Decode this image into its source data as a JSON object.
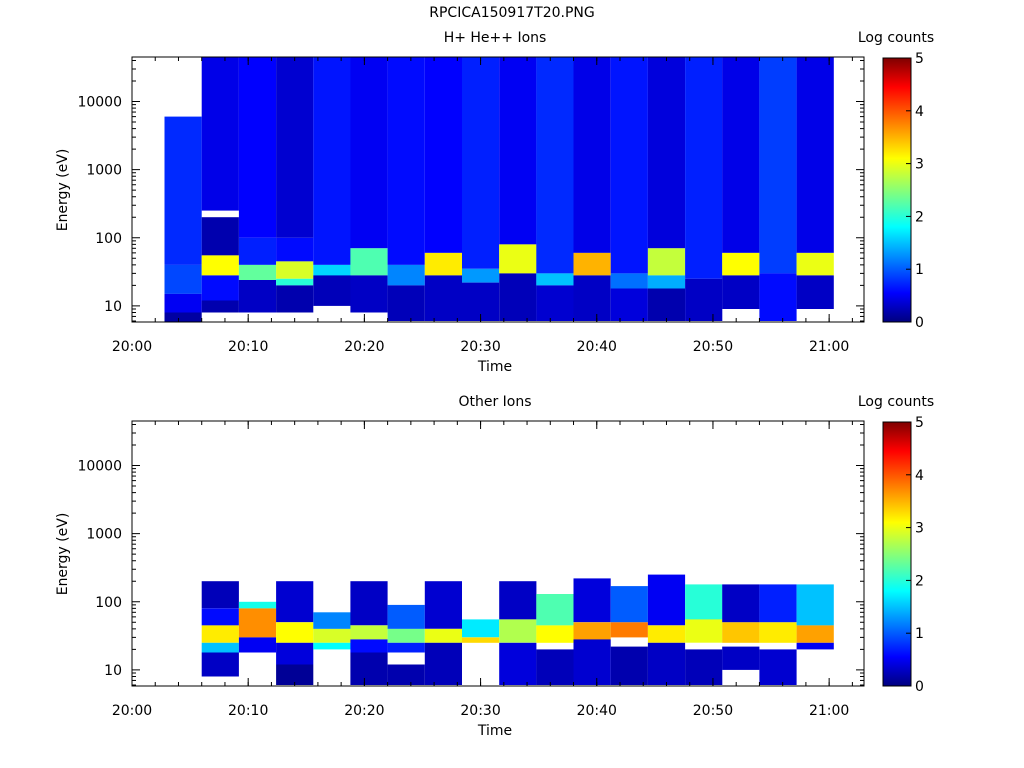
{
  "page": {
    "title": "RPCICA150917T20.PNG"
  },
  "panels": [
    {
      "title": "H+ He++ Ions",
      "ylabel": "Energy (eV)",
      "xlabel": "Time",
      "colorbar_label": "Log counts"
    },
    {
      "title": "Other Ions",
      "ylabel": "Energy (eV)",
      "xlabel": "Time",
      "colorbar_label": "Log counts"
    }
  ],
  "chart_data": [
    {
      "type": "heatmap",
      "title": "H+ He++ Ions",
      "xlabel": "Time",
      "ylabel": "Energy (eV)",
      "yscale": "log",
      "xlim_minutes": [
        0,
        63
      ],
      "ylim": [
        5.8,
        45000
      ],
      "x_ticks": [
        {
          "v": 0,
          "label": "20:00"
        },
        {
          "v": 10,
          "label": "20:10"
        },
        {
          "v": 20,
          "label": "20:20"
        },
        {
          "v": 30,
          "label": "20:30"
        },
        {
          "v": 40,
          "label": "20:40"
        },
        {
          "v": 50,
          "label": "20:50"
        },
        {
          "v": 60,
          "label": "21:00"
        }
      ],
      "y_ticks": [
        {
          "v": 10,
          "label": "10"
        },
        {
          "v": 100,
          "label": "100"
        },
        {
          "v": 1000,
          "label": "1000"
        },
        {
          "v": 10000,
          "label": "10000"
        }
      ],
      "colorbar": {
        "label": "Log counts",
        "range": [
          0,
          5
        ],
        "ticks": [
          "0",
          "1",
          "2",
          "3",
          "4",
          "5"
        ]
      },
      "time_bins_minutes": [
        2.8,
        6.0,
        9.2,
        12.4,
        15.6,
        18.8,
        22.0,
        25.2,
        28.4,
        31.6,
        34.8,
        38.0,
        41.2,
        44.4,
        47.6,
        50.8,
        54.0,
        57.2,
        60.4
      ],
      "cells": [
        {
          "e": [
            40,
            6000
          ],
          "v": 0.75
        },
        {
          "e": [
            15,
            40
          ],
          "v": 0.9
        },
        {
          "e": [
            8,
            15
          ],
          "v": 0.5
        },
        {
          "e": [
            5.8,
            8
          ],
          "v": 0.15
        },
        {
          "e": [
            250,
            45000
          ],
          "v": 0.45
        },
        {
          "e": [
            55,
            200
          ],
          "v": 0.2
        },
        {
          "e": [
            28,
            55
          ],
          "v": 3.1
        },
        {
          "e": [
            12,
            28
          ],
          "v": 0.6
        },
        {
          "e": [
            8,
            12
          ],
          "v": 0.2
        },
        {
          "e": [
            100,
            45000
          ],
          "v": 0.55
        },
        {
          "e": [
            40,
            100
          ],
          "v": 0.7
        },
        {
          "e": [
            24,
            40
          ],
          "v": 2.3
        },
        {
          "e": [
            8,
            24
          ],
          "v": 0.3
        },
        {
          "e": [
            100,
            45000
          ],
          "v": 0.35
        },
        {
          "e": [
            45,
            100
          ],
          "v": 0.6
        },
        {
          "e": [
            25,
            45
          ],
          "v": 2.9
        },
        {
          "e": [
            20,
            25
          ],
          "v": 2.0
        },
        {
          "e": [
            8,
            20
          ],
          "v": 0.2
        },
        {
          "e": [
            40,
            45000
          ],
          "v": 0.65
        },
        {
          "e": [
            28,
            40
          ],
          "v": 1.6
        },
        {
          "e": [
            10,
            28
          ],
          "v": 0.25
        },
        {
          "e": [
            70,
            45000
          ],
          "v": 0.5
        },
        {
          "e": [
            28,
            70
          ],
          "v": 2.2
        },
        {
          "e": [
            8,
            28
          ],
          "v": 0.3
        },
        {
          "e": [
            40,
            45000
          ],
          "v": 0.6
        },
        {
          "e": [
            20,
            40
          ],
          "v": 1.2
        },
        {
          "e": [
            6,
            20
          ],
          "v": 0.25
        },
        {
          "e": [
            60,
            45000
          ],
          "v": 0.55
        },
        {
          "e": [
            28,
            60
          ],
          "v": 3.2
        },
        {
          "e": [
            6,
            28
          ],
          "v": 0.3
        },
        {
          "e": [
            35,
            45000
          ],
          "v": 0.7
        },
        {
          "e": [
            22,
            35
          ],
          "v": 1.3
        },
        {
          "e": [
            6,
            22
          ],
          "v": 0.3
        },
        {
          "e": [
            80,
            45000
          ],
          "v": 0.5
        },
        {
          "e": [
            30,
            80
          ],
          "v": 3.0
        },
        {
          "e": [
            6,
            30
          ],
          "v": 0.25
        },
        {
          "e": [
            30,
            45000
          ],
          "v": 0.75
        },
        {
          "e": [
            20,
            30
          ],
          "v": 1.5
        },
        {
          "e": [
            6,
            20
          ],
          "v": 0.35
        },
        {
          "e": [
            60,
            45000
          ],
          "v": 0.45
        },
        {
          "e": [
            28,
            60
          ],
          "v": 3.5
        },
        {
          "e": [
            6,
            28
          ],
          "v": 0.3
        },
        {
          "e": [
            30,
            45000
          ],
          "v": 0.65
        },
        {
          "e": [
            18,
            30
          ],
          "v": 1.1
        },
        {
          "e": [
            6,
            18
          ],
          "v": 0.4
        },
        {
          "e": [
            70,
            45000
          ],
          "v": 0.4
        },
        {
          "e": [
            28,
            70
          ],
          "v": 2.8
        },
        {
          "e": [
            18,
            28
          ],
          "v": 1.4
        },
        {
          "e": [
            6,
            18
          ],
          "v": 0.2
        },
        {
          "e": [
            25,
            45000
          ],
          "v": 0.7
        },
        {
          "e": [
            6,
            25
          ],
          "v": 0.3
        },
        {
          "e": [
            60,
            45000
          ],
          "v": 0.45
        },
        {
          "e": [
            28,
            60
          ],
          "v": 3.1
        },
        {
          "e": [
            9,
            28
          ],
          "v": 0.3
        },
        {
          "e": [
            30,
            45000
          ],
          "v": 0.85
        },
        {
          "e": [
            6,
            30
          ],
          "v": 0.6
        },
        {
          "e": [
            60,
            45000
          ],
          "v": 0.45
        },
        {
          "e": [
            28,
            60
          ],
          "v": 3.0
        },
        {
          "e": [
            9,
            28
          ],
          "v": 0.3
        }
      ]
    },
    {
      "type": "heatmap",
      "title": "Other Ions",
      "xlabel": "Time",
      "ylabel": "Energy (eV)",
      "yscale": "log",
      "xlim_minutes": [
        0,
        63
      ],
      "ylim": [
        5.8,
        45000
      ],
      "x_ticks": [
        {
          "v": 0,
          "label": "20:00"
        },
        {
          "v": 10,
          "label": "20:10"
        },
        {
          "v": 20,
          "label": "20:20"
        },
        {
          "v": 30,
          "label": "20:30"
        },
        {
          "v": 40,
          "label": "20:40"
        },
        {
          "v": 50,
          "label": "20:50"
        },
        {
          "v": 60,
          "label": "21:00"
        }
      ],
      "y_ticks": [
        {
          "v": 10,
          "label": "10"
        },
        {
          "v": 100,
          "label": "100"
        },
        {
          "v": 1000,
          "label": "1000"
        },
        {
          "v": 10000,
          "label": "10000"
        }
      ],
      "colorbar": {
        "label": "Log counts",
        "range": [
          0,
          5
        ],
        "ticks": [
          "0",
          "1",
          "2",
          "3",
          "4",
          "5"
        ]
      },
      "cells": [
        {
          "e": [
            80,
            200
          ],
          "v": 0.25
        },
        {
          "e": [
            45,
            80
          ],
          "v": 0.6
        },
        {
          "e": [
            25,
            45
          ],
          "v": 3.2
        },
        {
          "e": [
            18,
            25
          ],
          "v": 1.5
        },
        {
          "e": [
            8,
            18
          ],
          "v": 0.3
        },
        {
          "e": [
            80,
            100
          ],
          "v": 1.9
        },
        {
          "e": [
            30,
            80
          ],
          "v": 3.7
        },
        {
          "e": [
            18,
            30
          ],
          "v": 0.5
        },
        {
          "e": [
            50,
            200
          ],
          "v": 0.35
        },
        {
          "e": [
            25,
            50
          ],
          "v": 3.1
        },
        {
          "e": [
            12,
            25
          ],
          "v": 0.4
        },
        {
          "e": [
            6,
            12
          ],
          "v": 0.1
        },
        {
          "e": [
            40,
            70
          ],
          "v": 1.2
        },
        {
          "e": [
            25,
            40
          ],
          "v": 2.9
        },
        {
          "e": [
            20,
            25
          ],
          "v": 1.8
        },
        {
          "e": [
            45,
            200
          ],
          "v": 0.3
        },
        {
          "e": [
            28,
            45
          ],
          "v": 2.8
        },
        {
          "e": [
            18,
            28
          ],
          "v": 0.6
        },
        {
          "e": [
            6,
            18
          ],
          "v": 0.2
        },
        {
          "e": [
            40,
            90
          ],
          "v": 1.0
        },
        {
          "e": [
            25,
            40
          ],
          "v": 2.4
        },
        {
          "e": [
            18,
            25
          ],
          "v": 0.7
        },
        {
          "e": [
            6,
            12
          ],
          "v": 0.2
        },
        {
          "e": [
            40,
            200
          ],
          "v": 0.35
        },
        {
          "e": [
            25,
            40
          ],
          "v": 3.0
        },
        {
          "e": [
            6,
            25
          ],
          "v": 0.25
        },
        {
          "e": [
            30,
            55
          ],
          "v": 1.7
        },
        {
          "e": [
            25,
            30
          ],
          "v": 3.3
        },
        {
          "e": [
            55,
            200
          ],
          "v": 0.3
        },
        {
          "e": [
            25,
            55
          ],
          "v": 2.7
        },
        {
          "e": [
            6,
            25
          ],
          "v": 0.4
        },
        {
          "e": [
            45,
            130
          ],
          "v": 2.2
        },
        {
          "e": [
            25,
            45
          ],
          "v": 3.1
        },
        {
          "e": [
            6,
            20
          ],
          "v": 0.25
        },
        {
          "e": [
            50,
            220
          ],
          "v": 0.4
        },
        {
          "e": [
            28,
            50
          ],
          "v": 3.6
        },
        {
          "e": [
            6,
            28
          ],
          "v": 0.35
        },
        {
          "e": [
            50,
            170
          ],
          "v": 1.0
        },
        {
          "e": [
            30,
            50
          ],
          "v": 3.8
        },
        {
          "e": [
            6,
            22
          ],
          "v": 0.2
        },
        {
          "e": [
            45,
            250
          ],
          "v": 0.5
        },
        {
          "e": [
            25,
            45
          ],
          "v": 3.2
        },
        {
          "e": [
            6,
            25
          ],
          "v": 0.3
        },
        {
          "e": [
            55,
            180
          ],
          "v": 2.0
        },
        {
          "e": [
            25,
            55
          ],
          "v": 3.0
        },
        {
          "e": [
            6,
            20
          ],
          "v": 0.25
        },
        {
          "e": [
            50,
            180
          ],
          "v": 0.3
        },
        {
          "e": [
            25,
            50
          ],
          "v": 3.4
        },
        {
          "e": [
            10,
            22
          ],
          "v": 0.3
        },
        {
          "e": [
            50,
            180
          ],
          "v": 0.7
        },
        {
          "e": [
            25,
            50
          ],
          "v": 3.2
        },
        {
          "e": [
            6,
            20
          ],
          "v": 0.35
        },
        {
          "e": [
            45,
            180
          ],
          "v": 1.5
        },
        {
          "e": [
            25,
            45
          ],
          "v": 3.6
        },
        {
          "e": [
            20,
            25
          ],
          "v": 0.5
        }
      ]
    }
  ]
}
